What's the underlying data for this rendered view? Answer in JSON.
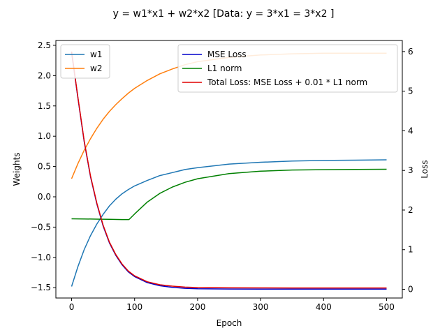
{
  "chart_data": {
    "type": "line",
    "title": "y = w1*x1 + w2*x2 [Data: y = 3*x1 = 3*x2 ]",
    "xlabel": "Epoch",
    "ylabel_left": "Weights",
    "ylabel_right": "Loss",
    "xlim": [
      -25,
      525
    ],
    "ylim_left": [
      -1.67,
      2.58
    ],
    "ylim_right": [
      -0.22,
      6.28
    ],
    "xticks": [
      "0",
      "100",
      "200",
      "300",
      "400",
      "500"
    ],
    "yticks_left": [
      "−1.5",
      "−1.0",
      "−0.5",
      "0.0",
      "0.5",
      "1.0",
      "1.5",
      "2.0",
      "2.5"
    ],
    "yticks_right": [
      "0",
      "1",
      "2",
      "3",
      "4",
      "5",
      "6"
    ],
    "grid": false,
    "weights_legend_placement": "upper-left",
    "loss_legend_placement": "upper-right",
    "weights_series": [
      {
        "name": "w1",
        "color": "#1f77b4",
        "x": [
          0,
          10,
          20,
          30,
          40,
          50,
          60,
          70,
          80,
          90,
          100,
          120,
          140,
          160,
          180,
          200,
          250,
          300,
          350,
          400,
          450,
          500
        ],
        "y": [
          -1.48,
          -1.15,
          -0.87,
          -0.64,
          -0.45,
          -0.29,
          -0.15,
          -0.04,
          0.05,
          0.12,
          0.18,
          0.27,
          0.35,
          0.4,
          0.45,
          0.48,
          0.54,
          0.57,
          0.59,
          0.6,
          0.605,
          0.61
        ]
      },
      {
        "name": "w2",
        "color": "#ff7f0e",
        "x": [
          0,
          10,
          20,
          30,
          40,
          50,
          60,
          70,
          80,
          90,
          100,
          120,
          140,
          160,
          180,
          200,
          250,
          300,
          350,
          400,
          450,
          500
        ],
        "y": [
          0.3,
          0.55,
          0.77,
          0.96,
          1.13,
          1.28,
          1.41,
          1.52,
          1.62,
          1.71,
          1.79,
          1.92,
          2.03,
          2.11,
          2.18,
          2.23,
          2.3,
          2.34,
          2.36,
          2.37,
          2.37,
          2.37
        ]
      }
    ],
    "loss_series": [
      {
        "name": "MSE Loss",
        "color": "#0000cc",
        "x": [
          0,
          10,
          20,
          30,
          40,
          50,
          60,
          70,
          80,
          90,
          100,
          120,
          140,
          160,
          180,
          200,
          250,
          300,
          350,
          400,
          450,
          500
        ],
        "y": [
          5.98,
          4.82,
          3.72,
          2.84,
          2.16,
          1.6,
          1.17,
          0.86,
          0.62,
          0.44,
          0.32,
          0.17,
          0.09,
          0.05,
          0.025,
          0.015,
          0.008,
          0.005,
          0.004,
          0.004,
          0.004,
          0.004
        ]
      },
      {
        "name": "L1 norm",
        "color": "#008000",
        "x": [
          0,
          20,
          40,
          60,
          80,
          91,
          100,
          120,
          140,
          160,
          180,
          200,
          250,
          300,
          350,
          400,
          450,
          500
        ],
        "y": [
          1.78,
          1.775,
          1.77,
          1.765,
          1.76,
          1.76,
          1.9,
          2.2,
          2.42,
          2.58,
          2.7,
          2.79,
          2.92,
          2.98,
          3.01,
          3.02,
          3.025,
          3.03
        ]
      },
      {
        "name": "Total Loss: MSE Loss + 0.01 * L1 norm",
        "color": "#e00000",
        "x": [
          0,
          10,
          20,
          30,
          40,
          50,
          60,
          70,
          80,
          90,
          100,
          120,
          140,
          160,
          180,
          200,
          250,
          300,
          350,
          400,
          450,
          500
        ],
        "y": [
          6.0,
          4.84,
          3.74,
          2.86,
          2.18,
          1.62,
          1.19,
          0.88,
          0.64,
          0.46,
          0.34,
          0.19,
          0.115,
          0.08,
          0.055,
          0.045,
          0.038,
          0.035,
          0.034,
          0.034,
          0.034,
          0.034
        ]
      }
    ]
  }
}
